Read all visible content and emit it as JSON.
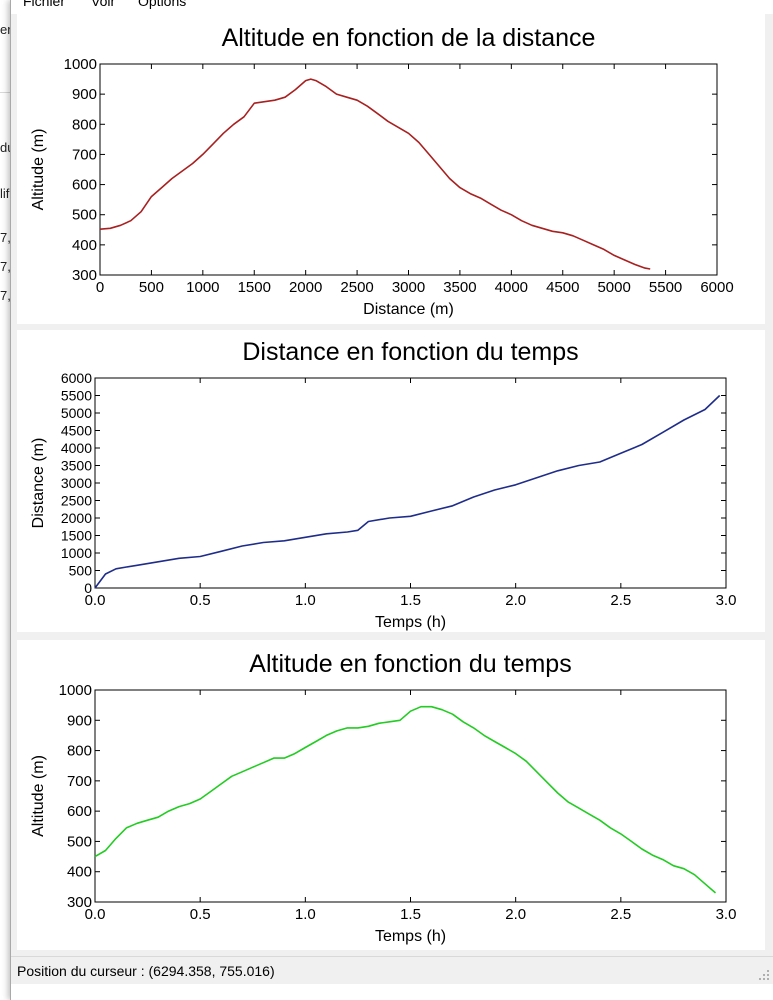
{
  "menu": {
    "items": [
      "Fichier",
      "Voir",
      "Options"
    ]
  },
  "background_window": {
    "fragments": [
      "er",
      "du",
      "lif",
      "7,",
      "7,",
      "7,"
    ]
  },
  "charts": [
    {
      "type": "line",
      "title": "Altitude en fonction de la distance",
      "xlabel": "Distance (m)",
      "ylabel": "Altitude (m)",
      "xlim": [
        0,
        6000
      ],
      "ylim": [
        300,
        1000
      ],
      "xticks": [
        0,
        500,
        1000,
        1500,
        2000,
        2500,
        3000,
        3500,
        4000,
        4500,
        5000,
        5500,
        6000
      ],
      "yticks": [
        300,
        400,
        500,
        600,
        700,
        800,
        900,
        1000
      ],
      "xtick_decimals": 0,
      "color": "#a82020",
      "x": [
        0,
        100,
        200,
        300,
        400,
        500,
        600,
        700,
        800,
        900,
        1000,
        1100,
        1200,
        1300,
        1400,
        1500,
        1600,
        1700,
        1800,
        1900,
        2000,
        2050,
        2100,
        2200,
        2300,
        2400,
        2500,
        2600,
        2700,
        2800,
        2900,
        3000,
        3100,
        3200,
        3300,
        3400,
        3500,
        3600,
        3700,
        3800,
        3900,
        4000,
        4100,
        4200,
        4300,
        4400,
        4500,
        4600,
        4700,
        4800,
        4900,
        5000,
        5100,
        5200,
        5300,
        5350
      ],
      "y": [
        452,
        455,
        465,
        480,
        510,
        560,
        590,
        620,
        645,
        670,
        700,
        735,
        770,
        800,
        825,
        870,
        875,
        880,
        890,
        915,
        945,
        950,
        945,
        925,
        900,
        890,
        880,
        860,
        835,
        810,
        790,
        770,
        740,
        700,
        660,
        620,
        590,
        570,
        555,
        535,
        515,
        500,
        480,
        465,
        455,
        445,
        440,
        430,
        415,
        400,
        385,
        365,
        350,
        335,
        323,
        320
      ]
    },
    {
      "type": "line",
      "title": "Distance en fonction du temps",
      "xlabel": "Temps (h)",
      "ylabel": "Distance (m)",
      "xlim": [
        0,
        3.0
      ],
      "ylim": [
        0,
        6000
      ],
      "xticks": [
        0.0,
        0.5,
        1.0,
        1.5,
        2.0,
        2.5,
        3.0
      ],
      "yticks": [
        0,
        500,
        1000,
        1500,
        2000,
        2500,
        3000,
        3500,
        4000,
        4500,
        5000,
        5500,
        6000
      ],
      "xtick_decimals": 1,
      "color": "#1f2d8a",
      "x": [
        0.0,
        0.05,
        0.1,
        0.15,
        0.2,
        0.3,
        0.4,
        0.5,
        0.6,
        0.7,
        0.8,
        0.9,
        1.0,
        1.1,
        1.2,
        1.25,
        1.3,
        1.4,
        1.5,
        1.6,
        1.7,
        1.8,
        1.9,
        2.0,
        2.1,
        2.2,
        2.3,
        2.4,
        2.5,
        2.6,
        2.7,
        2.8,
        2.9,
        2.97
      ],
      "y": [
        0,
        400,
        550,
        600,
        650,
        750,
        850,
        900,
        1050,
        1200,
        1300,
        1350,
        1450,
        1550,
        1600,
        1650,
        1900,
        2000,
        2050,
        2200,
        2350,
        2600,
        2800,
        2950,
        3150,
        3350,
        3500,
        3600,
        3850,
        4100,
        4450,
        4800,
        5100,
        5500
      ]
    },
    {
      "type": "line",
      "title": "Altitude en fonction du temps",
      "xlabel": "Temps (h)",
      "ylabel": "Altitude (m)",
      "xlim": [
        0,
        3.0
      ],
      "ylim": [
        300,
        1000
      ],
      "xticks": [
        0.0,
        0.5,
        1.0,
        1.5,
        2.0,
        2.5,
        3.0
      ],
      "yticks": [
        300,
        400,
        500,
        600,
        700,
        800,
        900,
        1000
      ],
      "xtick_decimals": 1,
      "color": "#22cc22",
      "x": [
        0.0,
        0.05,
        0.1,
        0.15,
        0.2,
        0.25,
        0.3,
        0.35,
        0.4,
        0.45,
        0.5,
        0.55,
        0.6,
        0.65,
        0.7,
        0.75,
        0.8,
        0.85,
        0.9,
        0.95,
        1.0,
        1.05,
        1.1,
        1.15,
        1.2,
        1.25,
        1.3,
        1.35,
        1.4,
        1.45,
        1.5,
        1.55,
        1.6,
        1.65,
        1.7,
        1.75,
        1.8,
        1.85,
        1.9,
        1.95,
        2.0,
        2.05,
        2.1,
        2.15,
        2.2,
        2.25,
        2.3,
        2.35,
        2.4,
        2.45,
        2.5,
        2.55,
        2.6,
        2.65,
        2.7,
        2.75,
        2.8,
        2.85,
        2.9,
        2.95
      ],
      "y": [
        450,
        470,
        510,
        545,
        560,
        570,
        580,
        600,
        615,
        625,
        640,
        665,
        690,
        715,
        730,
        745,
        760,
        775,
        775,
        790,
        810,
        830,
        850,
        865,
        875,
        875,
        880,
        890,
        895,
        900,
        930,
        945,
        945,
        935,
        920,
        895,
        875,
        850,
        830,
        810,
        790,
        765,
        730,
        695,
        660,
        630,
        610,
        590,
        570,
        545,
        525,
        500,
        475,
        455,
        440,
        420,
        410,
        390,
        360,
        330
      ]
    }
  ],
  "status": {
    "text": "Position du curseur : (6294.358, 755.016)"
  }
}
